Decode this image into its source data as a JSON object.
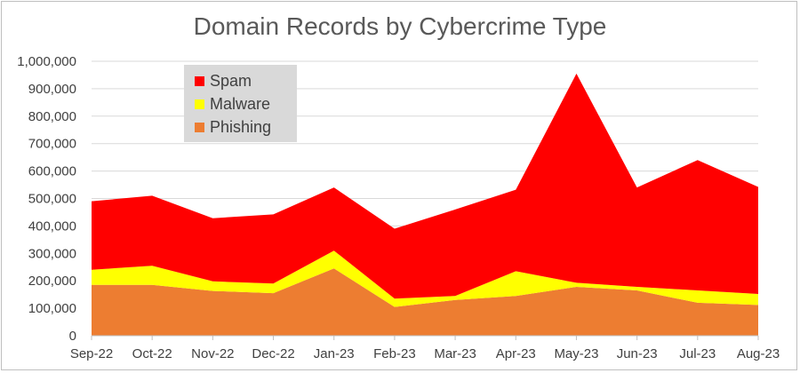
{
  "chart_data": {
    "type": "area",
    "stacked": true,
    "title": "Domain Records by Cybercrime Type",
    "categories": [
      "Sep-22",
      "Oct-22",
      "Nov-22",
      "Dec-22",
      "Jan-23",
      "Feb-23",
      "Mar-23",
      "Apr-23",
      "May-23",
      "Jun-23",
      "Jul-23",
      "Aug-23"
    ],
    "y_ticks": [
      "0",
      "100,000",
      "200,000",
      "300,000",
      "400,000",
      "500,000",
      "600,000",
      "700,000",
      "800,000",
      "900,000",
      "1,000,000"
    ],
    "ylim": [
      0,
      1000000
    ],
    "grid": true,
    "legend_position": "top-left",
    "series": [
      {
        "name": "Phishing",
        "color": "#ed7d31",
        "values": [
          185000,
          185000,
          163000,
          155000,
          245000,
          105000,
          130000,
          145000,
          178000,
          165000,
          120000,
          112000
        ]
      },
      {
        "name": "Malware",
        "color": "#ffff00",
        "values": [
          55000,
          70000,
          35000,
          35000,
          65000,
          30000,
          15000,
          90000,
          15000,
          13000,
          45000,
          40000
        ]
      },
      {
        "name": "Spam",
        "color": "#ff0000",
        "values": [
          250000,
          255000,
          230000,
          252000,
          230000,
          255000,
          315000,
          297000,
          762000,
          362000,
          475000,
          390000
        ]
      }
    ]
  }
}
